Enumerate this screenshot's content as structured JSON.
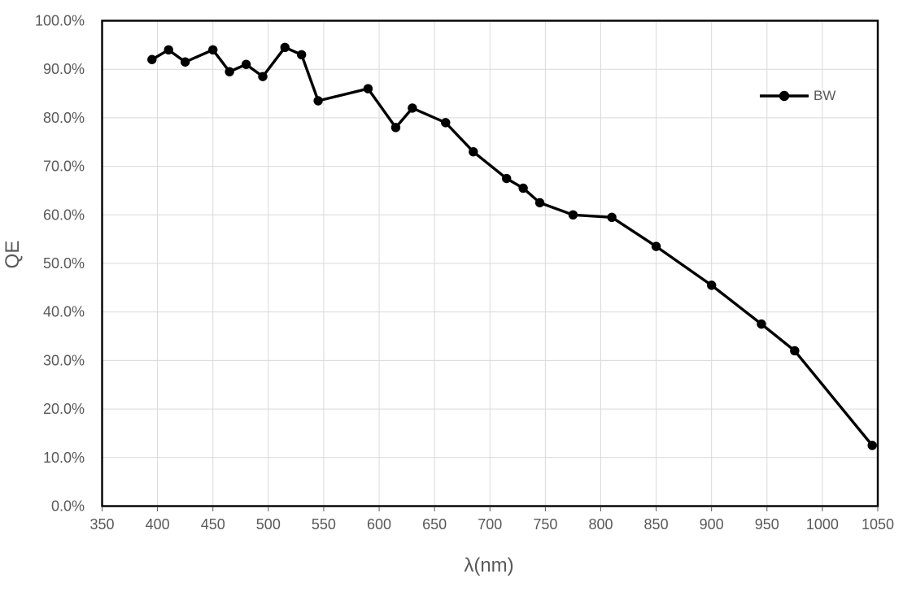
{
  "chart_data": {
    "type": "line",
    "title": "",
    "xlabel": "λ(nm)",
    "ylabel": "QE",
    "xlim": [
      350,
      1050
    ],
    "ylim": [
      0,
      100
    ],
    "x_ticks": [
      350,
      400,
      450,
      500,
      550,
      600,
      650,
      700,
      750,
      800,
      850,
      900,
      950,
      1000,
      1050
    ],
    "y_ticks": [
      0,
      10,
      20,
      30,
      40,
      50,
      60,
      70,
      80,
      90,
      100
    ],
    "y_tick_labels": [
      "0.0%",
      "10.0%",
      "20.0%",
      "30.0%",
      "40.0%",
      "50.0%",
      "60.0%",
      "70.0%",
      "80.0%",
      "90.0%",
      "100.0%"
    ],
    "grid": true,
    "legend_position": "inside-top-right",
    "series": [
      {
        "name": "BW",
        "color": "#000000",
        "marker": "circle",
        "x": [
          395,
          410,
          425,
          450,
          465,
          480,
          495,
          515,
          530,
          545,
          590,
          615,
          630,
          660,
          685,
          715,
          730,
          745,
          775,
          810,
          850,
          900,
          945,
          975,
          1045
        ],
        "y": [
          92,
          94,
          91.5,
          94,
          89.5,
          91,
          88.5,
          94.5,
          93,
          83.5,
          86,
          78,
          82,
          79,
          73,
          67.5,
          65.5,
          62.5,
          60,
          59.5,
          53.5,
          45.5,
          37.5,
          32,
          12.5
        ]
      }
    ]
  },
  "styles": {
    "background": "#FFFFFF",
    "grid_color": "#D9D9D9",
    "axis_color": "#000000",
    "tick_color": "#595959",
    "tick_label_color": "#595959",
    "axis_title_color": "#595959",
    "series_color": "#000000"
  }
}
